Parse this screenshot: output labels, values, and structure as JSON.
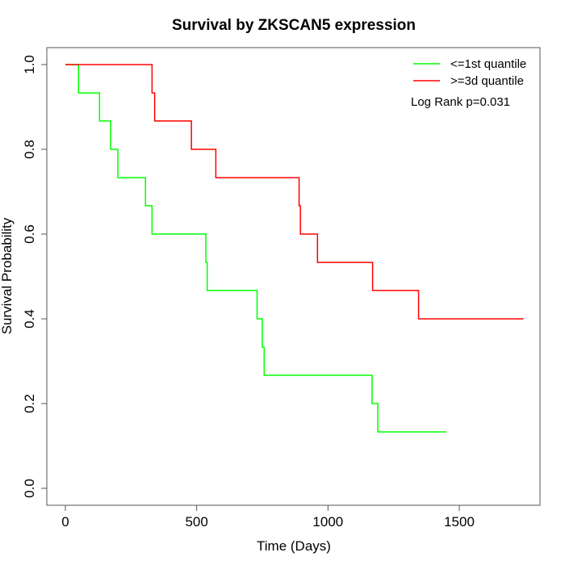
{
  "chart_data": {
    "type": "line",
    "title": "Survival by ZKSCAN5 expression",
    "xlabel": "Time (Days)",
    "ylabel": "Survival Probability",
    "xlim": [
      0,
      1800
    ],
    "ylim": [
      0,
      1.0
    ],
    "x_ticks": [
      0,
      500,
      1000,
      1500
    ],
    "y_ticks": [
      0.0,
      0.2,
      0.4,
      0.6,
      0.8,
      1.0
    ],
    "x_tick_labels": [
      "0",
      "500",
      "1000",
      "1500"
    ],
    "y_tick_labels": [
      "0.0",
      "0.2",
      "0.4",
      "0.6",
      "0.8",
      "1.0"
    ],
    "grid": false,
    "legend_position": "top-right",
    "annotation": "Log Rank p=0.031",
    "series": [
      {
        "name": "<=1st quantile",
        "color": "#00ff00",
        "step": true,
        "x": [
          0,
          50,
          130,
          172,
          200,
          305,
          330,
          535,
          540,
          730,
          750,
          757,
          760,
          1168,
          1190,
          1450
        ],
        "y": [
          1.0,
          0.933,
          0.867,
          0.8,
          0.733,
          0.667,
          0.6,
          0.533,
          0.467,
          0.4,
          0.333,
          0.267,
          0.267,
          0.2,
          0.133,
          0.133
        ]
      },
      {
        "name": ">=3d quantile",
        "color": "#ff0000",
        "step": true,
        "x": [
          0,
          330,
          340,
          480,
          573,
          890,
          895,
          960,
          1170,
          1345,
          1745
        ],
        "y": [
          1.0,
          0.933,
          0.867,
          0.8,
          0.733,
          0.667,
          0.6,
          0.533,
          0.467,
          0.4,
          0.4
        ]
      }
    ]
  }
}
